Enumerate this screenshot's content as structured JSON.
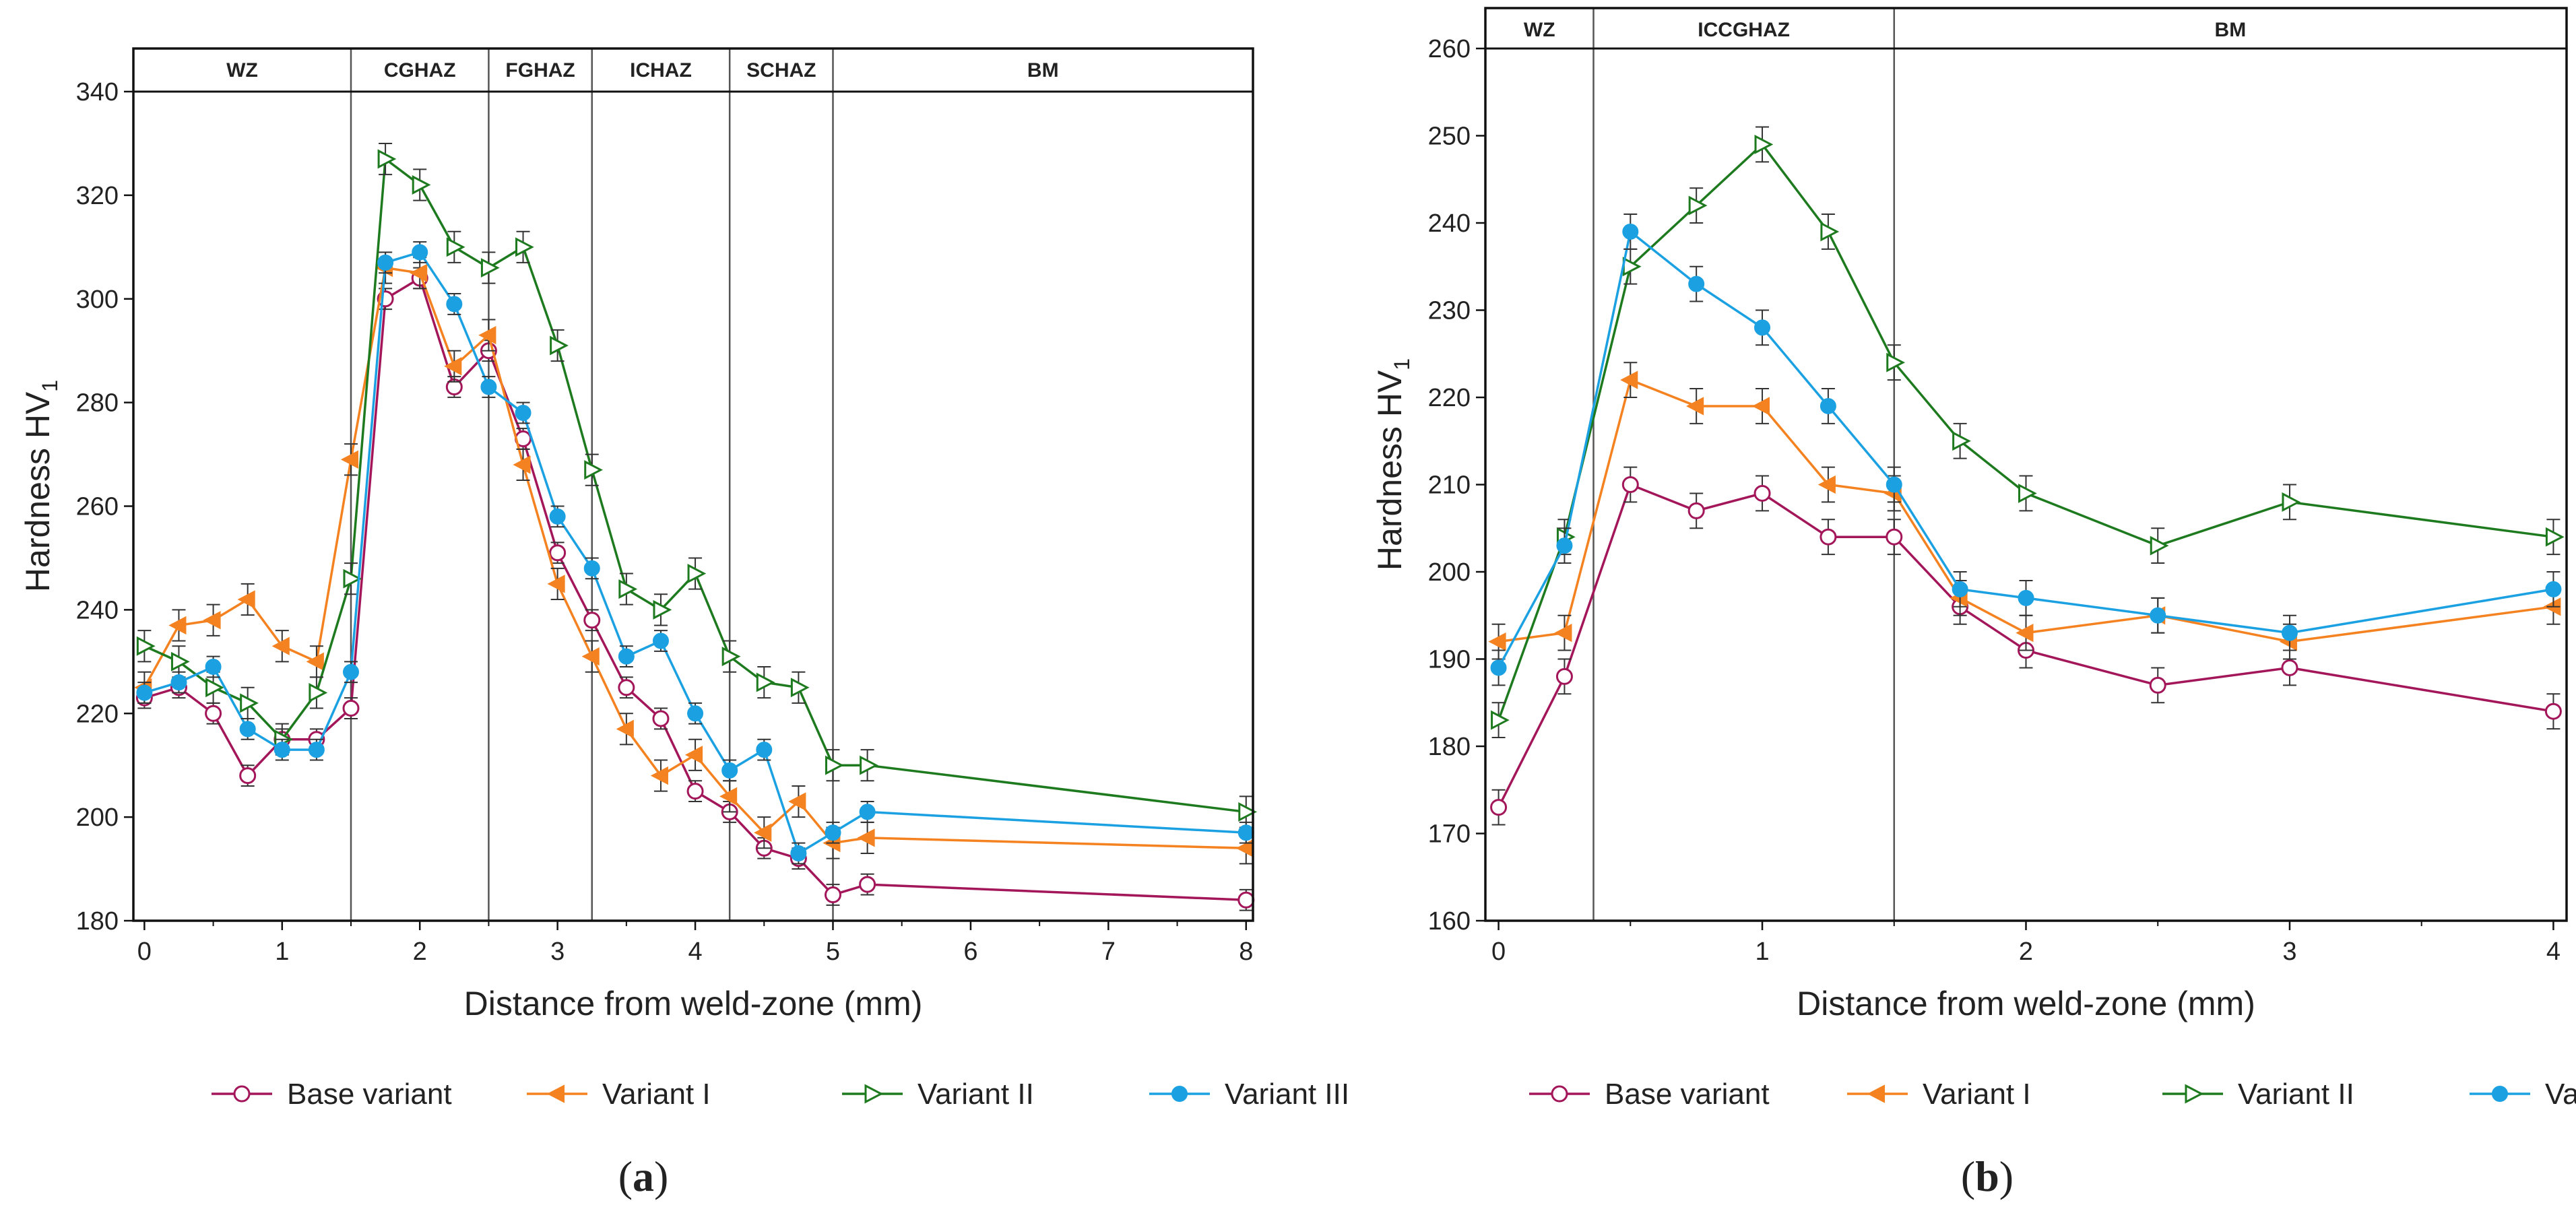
{
  "chart_data": [
    {
      "type": "line",
      "panel": "a",
      "xlabel": "Distance from weld-zone (mm)",
      "ylabel": "Hardness HV",
      "ylabel_sub": "1",
      "xlim": [
        -0.08,
        8.05
      ],
      "ylim": [
        180,
        340
      ],
      "xticks": [
        0,
        1,
        2,
        3,
        4,
        5,
        6,
        7,
        8
      ],
      "yticks": [
        180,
        200,
        220,
        240,
        260,
        280,
        300,
        320,
        340
      ],
      "zone_boundaries": [
        1.5,
        2.5,
        3.25,
        4.25,
        5.0
      ],
      "zones": [
        {
          "label": "WZ",
          "from": -0.08,
          "to": 1.5
        },
        {
          "label": "CGHAZ",
          "from": 1.5,
          "to": 2.5
        },
        {
          "label": "FGHAZ",
          "from": 2.5,
          "to": 3.25
        },
        {
          "label": "ICHAZ",
          "from": 3.25,
          "to": 4.25
        },
        {
          "label": "SCHAZ",
          "from": 4.25,
          "to": 5.0
        },
        {
          "label": "BM",
          "from": 5.0,
          "to": 8.05
        }
      ],
      "series": [
        {
          "name": "Base variant",
          "color": "#a3175a",
          "marker": "circle-open",
          "x": [
            0,
            0.25,
            0.5,
            0.75,
            1.0,
            1.25,
            1.5,
            1.75,
            2.0,
            2.25,
            2.5,
            2.75,
            3.0,
            3.25,
            3.5,
            3.75,
            4.0,
            4.25,
            4.5,
            4.75,
            5.0,
            5.25,
            8.0
          ],
          "y": [
            223,
            225,
            220,
            208,
            215,
            215,
            221,
            300,
            304,
            283,
            290,
            273,
            251,
            238,
            225,
            219,
            205,
            201,
            194,
            192,
            185,
            187,
            184
          ],
          "err": 2
        },
        {
          "name": "Variant I",
          "color": "#f58220",
          "marker": "triangle-left-filled",
          "x": [
            0,
            0.25,
            0.5,
            0.75,
            1.0,
            1.25,
            1.5,
            1.75,
            2.0,
            2.25,
            2.5,
            2.75,
            3.0,
            3.25,
            3.5,
            3.75,
            4.0,
            4.25,
            4.5,
            4.75,
            5.0,
            5.25,
            8.0
          ],
          "y": [
            225,
            237,
            238,
            242,
            233,
            230,
            269,
            306,
            305,
            287,
            293,
            268,
            245,
            231,
            217,
            208,
            212,
            204,
            197,
            203,
            195,
            196,
            194
          ],
          "err": 3
        },
        {
          "name": "Variant II",
          "color": "#1e7a1e",
          "marker": "triangle-right-open",
          "x": [
            0,
            0.25,
            0.5,
            0.75,
            1.0,
            1.25,
            1.5,
            1.75,
            2.0,
            2.25,
            2.5,
            2.75,
            3.0,
            3.25,
            3.5,
            3.75,
            4.0,
            4.25,
            4.5,
            4.75,
            5.0,
            5.25,
            8.0
          ],
          "y": [
            233,
            230,
            225,
            222,
            215,
            224,
            246,
            327,
            322,
            310,
            306,
            310,
            291,
            267,
            244,
            240,
            247,
            231,
            226,
            225,
            210,
            210,
            201
          ],
          "err": 3
        },
        {
          "name": "Variant III",
          "color": "#1ba1e2",
          "marker": "circle-filled",
          "x": [
            0,
            0.25,
            0.5,
            0.75,
            1.0,
            1.25,
            1.5,
            1.75,
            2.0,
            2.25,
            2.5,
            2.75,
            3.0,
            3.25,
            3.5,
            3.75,
            4.0,
            4.25,
            4.5,
            4.75,
            5.0,
            5.25,
            8.0
          ],
          "y": [
            224,
            226,
            229,
            217,
            213,
            213,
            228,
            307,
            309,
            299,
            283,
            278,
            258,
            248,
            231,
            234,
            220,
            209,
            213,
            193,
            197,
            201,
            197
          ],
          "err": 2
        }
      ]
    },
    {
      "type": "line",
      "panel": "b",
      "xlabel": "Distance from weld-zone (mm)",
      "ylabel": "Hardness HV",
      "ylabel_sub": "1",
      "xlim": [
        -0.05,
        4.05
      ],
      "ylim": [
        160,
        260
      ],
      "xticks": [
        0,
        1,
        2,
        3,
        4
      ],
      "yticks": [
        160,
        170,
        180,
        190,
        200,
        210,
        220,
        230,
        240,
        250,
        260
      ],
      "zone_boundaries": [
        0.36,
        1.5
      ],
      "zones": [
        {
          "label": "WZ",
          "from": -0.05,
          "to": 0.36
        },
        {
          "label": "ICCGHAZ",
          "from": 0.36,
          "to": 1.5
        },
        {
          "label": "BM",
          "from": 1.5,
          "to": 4.05
        }
      ],
      "series": [
        {
          "name": "Base variant",
          "color": "#a3175a",
          "marker": "circle-open",
          "x": [
            0,
            0.25,
            0.5,
            0.75,
            1.0,
            1.25,
            1.5,
            1.75,
            2.0,
            2.5,
            3.0,
            4.0
          ],
          "y": [
            173,
            188,
            210,
            207,
            209,
            204,
            204,
            196,
            191,
            187,
            189,
            184
          ],
          "err": 2
        },
        {
          "name": "Variant I",
          "color": "#f58220",
          "marker": "triangle-left-filled",
          "x": [
            0,
            0.25,
            0.5,
            0.75,
            1.0,
            1.25,
            1.5,
            1.75,
            2.0,
            2.5,
            3.0,
            4.0
          ],
          "y": [
            192,
            193,
            222,
            219,
            219,
            210,
            209,
            197,
            193,
            195,
            192,
            196
          ],
          "err": 2
        },
        {
          "name": "Variant II",
          "color": "#1e7a1e",
          "marker": "triangle-right-open",
          "x": [
            0,
            0.25,
            0.5,
            0.75,
            1.0,
            1.25,
            1.5,
            1.75,
            2.0,
            2.5,
            3.0,
            4.0
          ],
          "y": [
            183,
            204,
            235,
            242,
            249,
            239,
            224,
            215,
            209,
            203,
            208,
            204
          ],
          "err": 2
        },
        {
          "name": "Variant III",
          "color": "#1ba1e2",
          "marker": "circle-filled",
          "x": [
            0,
            0.25,
            0.5,
            0.75,
            1.0,
            1.25,
            1.5,
            1.75,
            2.0,
            2.5,
            3.0,
            4.0
          ],
          "y": [
            189,
            203,
            239,
            233,
            228,
            219,
            210,
            198,
            197,
            195,
            193,
            198
          ],
          "err": 2
        }
      ]
    }
  ],
  "panel_labels": [
    {
      "open": "(",
      "letter": "a",
      "close": ")"
    },
    {
      "open": "(",
      "letter": "b",
      "close": ")"
    }
  ]
}
